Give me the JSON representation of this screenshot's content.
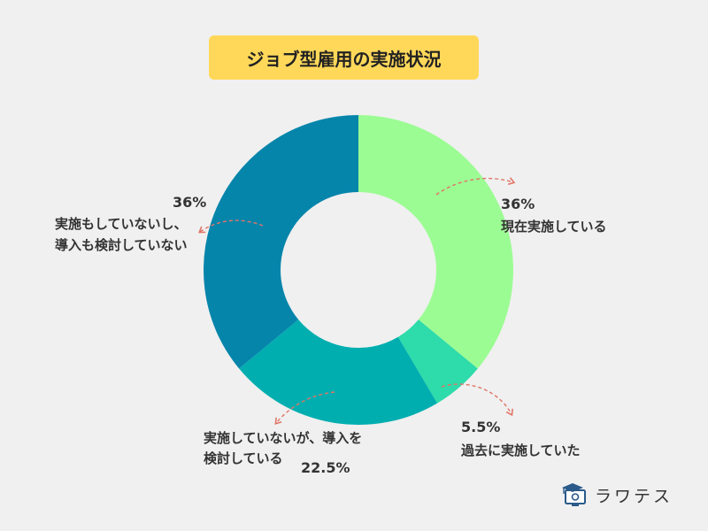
{
  "title": "ジョブ型雇用の実施状況",
  "logo": {
    "text": "ラワテス",
    "icon": "graduation-monitor-icon"
  },
  "chart_data": {
    "type": "pie",
    "donut": true,
    "title": "ジョブ型雇用の実施状況",
    "categories": [
      "現在実施している",
      "過去に実施していた",
      "実施していないが、導入を検討している",
      "実施もしていないし、導入も検討していない"
    ],
    "values": [
      36,
      5.5,
      22.5,
      36
    ],
    "value_labels": [
      "36%",
      "5.5%",
      "22.5%",
      "36%"
    ],
    "label_lines": [
      [
        "現在実施している"
      ],
      [
        "過去に実施していた"
      ],
      [
        "実施していないが、導入を",
        "検討している"
      ],
      [
        "実施もしていないし、",
        "導入も検討していない"
      ]
    ],
    "colors": [
      "#9cfc94",
      "#2edbaa",
      "#00aeb0",
      "#0685ab"
    ],
    "arrow_color": "#e07566"
  }
}
